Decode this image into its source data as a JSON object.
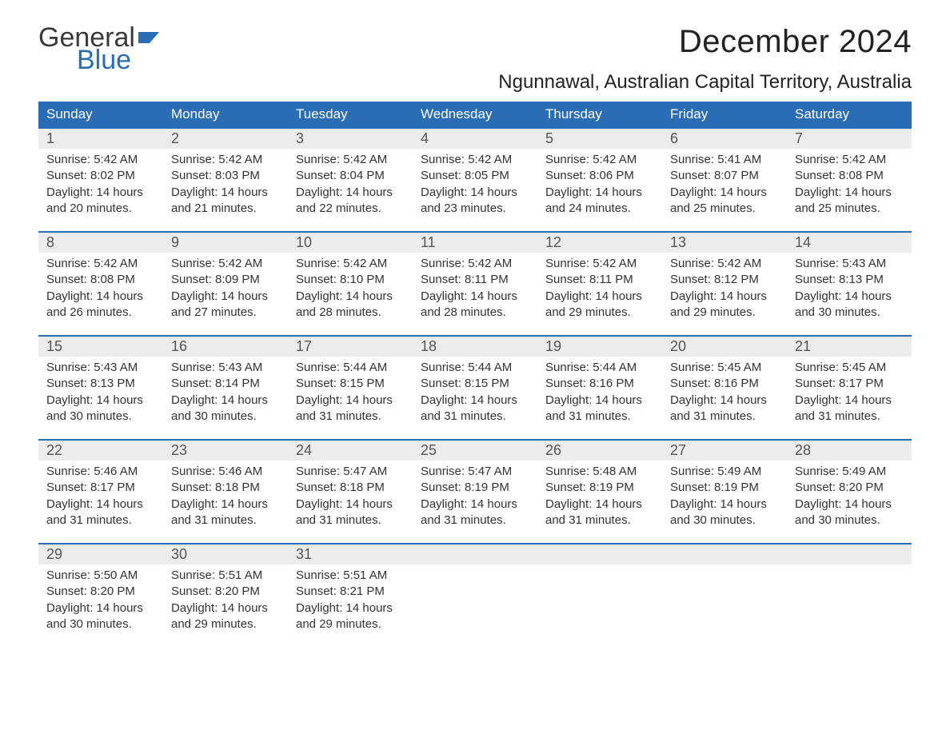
{
  "logo": {
    "word1": "General",
    "word2": "Blue",
    "word1_color": "#3a3a3a",
    "word2_color": "#2a6db5",
    "flag_color": "#2a6db5"
  },
  "title": "December 2024",
  "location": "Ngunnawal, Australian Capital Territory, Australia",
  "style": {
    "header_bg": "#2a6db5",
    "header_text": "#ffffff",
    "daynum_bg": "#ececec",
    "row_border": "#2a6db5",
    "body_bg": "#ffffff",
    "text_color": "#333333",
    "title_fontsize": 40,
    "location_fontsize": 24,
    "dayhead_fontsize": 17,
    "detail_fontsize": 15
  },
  "weekdays": [
    "Sunday",
    "Monday",
    "Tuesday",
    "Wednesday",
    "Thursday",
    "Friday",
    "Saturday"
  ],
  "days": [
    {
      "n": "1",
      "sunrise": "5:42 AM",
      "sunset": "8:02 PM",
      "daylight": "14 hours and 20 minutes."
    },
    {
      "n": "2",
      "sunrise": "5:42 AM",
      "sunset": "8:03 PM",
      "daylight": "14 hours and 21 minutes."
    },
    {
      "n": "3",
      "sunrise": "5:42 AM",
      "sunset": "8:04 PM",
      "daylight": "14 hours and 22 minutes."
    },
    {
      "n": "4",
      "sunrise": "5:42 AM",
      "sunset": "8:05 PM",
      "daylight": "14 hours and 23 minutes."
    },
    {
      "n": "5",
      "sunrise": "5:42 AM",
      "sunset": "8:06 PM",
      "daylight": "14 hours and 24 minutes."
    },
    {
      "n": "6",
      "sunrise": "5:41 AM",
      "sunset": "8:07 PM",
      "daylight": "14 hours and 25 minutes."
    },
    {
      "n": "7",
      "sunrise": "5:42 AM",
      "sunset": "8:08 PM",
      "daylight": "14 hours and 25 minutes."
    },
    {
      "n": "8",
      "sunrise": "5:42 AM",
      "sunset": "8:08 PM",
      "daylight": "14 hours and 26 minutes."
    },
    {
      "n": "9",
      "sunrise": "5:42 AM",
      "sunset": "8:09 PM",
      "daylight": "14 hours and 27 minutes."
    },
    {
      "n": "10",
      "sunrise": "5:42 AM",
      "sunset": "8:10 PM",
      "daylight": "14 hours and 28 minutes."
    },
    {
      "n": "11",
      "sunrise": "5:42 AM",
      "sunset": "8:11 PM",
      "daylight": "14 hours and 28 minutes."
    },
    {
      "n": "12",
      "sunrise": "5:42 AM",
      "sunset": "8:11 PM",
      "daylight": "14 hours and 29 minutes."
    },
    {
      "n": "13",
      "sunrise": "5:42 AM",
      "sunset": "8:12 PM",
      "daylight": "14 hours and 29 minutes."
    },
    {
      "n": "14",
      "sunrise": "5:43 AM",
      "sunset": "8:13 PM",
      "daylight": "14 hours and 30 minutes."
    },
    {
      "n": "15",
      "sunrise": "5:43 AM",
      "sunset": "8:13 PM",
      "daylight": "14 hours and 30 minutes."
    },
    {
      "n": "16",
      "sunrise": "5:43 AM",
      "sunset": "8:14 PM",
      "daylight": "14 hours and 30 minutes."
    },
    {
      "n": "17",
      "sunrise": "5:44 AM",
      "sunset": "8:15 PM",
      "daylight": "14 hours and 31 minutes."
    },
    {
      "n": "18",
      "sunrise": "5:44 AM",
      "sunset": "8:15 PM",
      "daylight": "14 hours and 31 minutes."
    },
    {
      "n": "19",
      "sunrise": "5:44 AM",
      "sunset": "8:16 PM",
      "daylight": "14 hours and 31 minutes."
    },
    {
      "n": "20",
      "sunrise": "5:45 AM",
      "sunset": "8:16 PM",
      "daylight": "14 hours and 31 minutes."
    },
    {
      "n": "21",
      "sunrise": "5:45 AM",
      "sunset": "8:17 PM",
      "daylight": "14 hours and 31 minutes."
    },
    {
      "n": "22",
      "sunrise": "5:46 AM",
      "sunset": "8:17 PM",
      "daylight": "14 hours and 31 minutes."
    },
    {
      "n": "23",
      "sunrise": "5:46 AM",
      "sunset": "8:18 PM",
      "daylight": "14 hours and 31 minutes."
    },
    {
      "n": "24",
      "sunrise": "5:47 AM",
      "sunset": "8:18 PM",
      "daylight": "14 hours and 31 minutes."
    },
    {
      "n": "25",
      "sunrise": "5:47 AM",
      "sunset": "8:19 PM",
      "daylight": "14 hours and 31 minutes."
    },
    {
      "n": "26",
      "sunrise": "5:48 AM",
      "sunset": "8:19 PM",
      "daylight": "14 hours and 31 minutes."
    },
    {
      "n": "27",
      "sunrise": "5:49 AM",
      "sunset": "8:19 PM",
      "daylight": "14 hours and 30 minutes."
    },
    {
      "n": "28",
      "sunrise": "5:49 AM",
      "sunset": "8:20 PM",
      "daylight": "14 hours and 30 minutes."
    },
    {
      "n": "29",
      "sunrise": "5:50 AM",
      "sunset": "8:20 PM",
      "daylight": "14 hours and 30 minutes."
    },
    {
      "n": "30",
      "sunrise": "5:51 AM",
      "sunset": "8:20 PM",
      "daylight": "14 hours and 29 minutes."
    },
    {
      "n": "31",
      "sunrise": "5:51 AM",
      "sunset": "8:21 PM",
      "daylight": "14 hours and 29 minutes."
    }
  ],
  "labels": {
    "sunrise": "Sunrise: ",
    "sunset": "Sunset: ",
    "daylight": "Daylight: "
  },
  "trailing_empty": 4
}
